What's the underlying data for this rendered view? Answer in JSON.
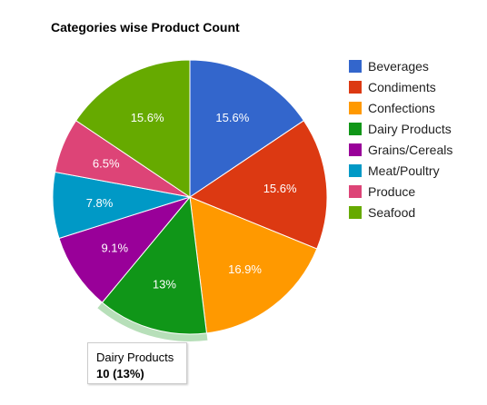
{
  "chart_data": {
    "type": "pie",
    "title": "Categories wise Product Count",
    "legend_position": "right",
    "slices": [
      {
        "label": "Beverages",
        "value": 12,
        "percent": "15.6%",
        "color": "#3366cc"
      },
      {
        "label": "Condiments",
        "value": 12,
        "percent": "15.6%",
        "color": "#dc3912"
      },
      {
        "label": "Confections",
        "value": 13,
        "percent": "16.9%",
        "color": "#ff9900"
      },
      {
        "label": "Dairy Products",
        "value": 10,
        "percent": "13%",
        "color": "#109618"
      },
      {
        "label": "Grains/Cereals",
        "value": 7,
        "percent": "9.1%",
        "color": "#990099"
      },
      {
        "label": "Meat/Poultry",
        "value": 6,
        "percent": "7.8%",
        "color": "#0099c6"
      },
      {
        "label": "Produce",
        "value": 5,
        "percent": "6.5%",
        "color": "#dd4477"
      },
      {
        "label": "Seafood",
        "value": 12,
        "percent": "15.6%",
        "color": "#66aa00"
      }
    ],
    "highlighted": "Dairy Products"
  },
  "tooltip": {
    "label": "Dairy Products",
    "value": "10 (13%)"
  }
}
